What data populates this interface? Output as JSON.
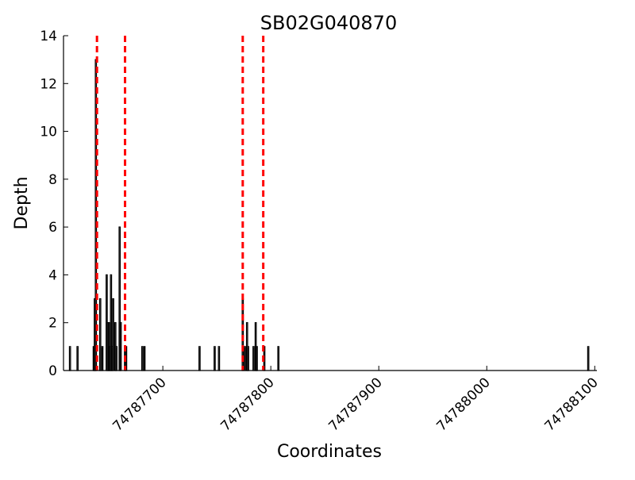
{
  "chart_data": {
    "type": "bar",
    "title": "SB02G040870",
    "xlabel": "Coordinates",
    "ylabel": "Depth",
    "xlim": [
      74787608,
      74788102
    ],
    "ylim": [
      0,
      14
    ],
    "grid": false,
    "xticks": [
      74787700,
      74787800,
      74787900,
      74788000,
      74788100
    ],
    "yticks": [
      0,
      2,
      4,
      6,
      8,
      10,
      12,
      14
    ],
    "bars": [
      {
        "x": 74787614,
        "y": 1
      },
      {
        "x": 74787621,
        "y": 1
      },
      {
        "x": 74787636,
        "y": 1
      },
      {
        "x": 74787637,
        "y": 3
      },
      {
        "x": 74787638,
        "y": 13
      },
      {
        "x": 74787642,
        "y": 3
      },
      {
        "x": 74787644,
        "y": 1
      },
      {
        "x": 74787648,
        "y": 4
      },
      {
        "x": 74787649,
        "y": 2
      },
      {
        "x": 74787650,
        "y": 2
      },
      {
        "x": 74787651,
        "y": 1
      },
      {
        "x": 74787652,
        "y": 4
      },
      {
        "x": 74787653,
        "y": 1
      },
      {
        "x": 74787654,
        "y": 3
      },
      {
        "x": 74787656,
        "y": 2
      },
      {
        "x": 74787657,
        "y": 1
      },
      {
        "x": 74787660,
        "y": 6
      },
      {
        "x": 74787661,
        "y": 2
      },
      {
        "x": 74787665,
        "y": 1
      },
      {
        "x": 74787666,
        "y": 1
      },
      {
        "x": 74787681,
        "y": 1
      },
      {
        "x": 74787683,
        "y": 1
      },
      {
        "x": 74787734,
        "y": 1
      },
      {
        "x": 74787748,
        "y": 1
      },
      {
        "x": 74787752,
        "y": 1
      },
      {
        "x": 74787774,
        "y": 3
      },
      {
        "x": 74787776,
        "y": 1
      },
      {
        "x": 74787778,
        "y": 2
      },
      {
        "x": 74787779,
        "y": 1
      },
      {
        "x": 74787784,
        "y": 1
      },
      {
        "x": 74787786,
        "y": 2
      },
      {
        "x": 74787787,
        "y": 1
      },
      {
        "x": 74787794,
        "y": 1
      },
      {
        "x": 74787807,
        "y": 1
      },
      {
        "x": 74788094,
        "y": 1
      }
    ],
    "vlines": [
      74787639,
      74787665,
      74787774,
      74787793
    ],
    "colors": {
      "bars": "#000000",
      "vlines": "#ff0000"
    }
  }
}
